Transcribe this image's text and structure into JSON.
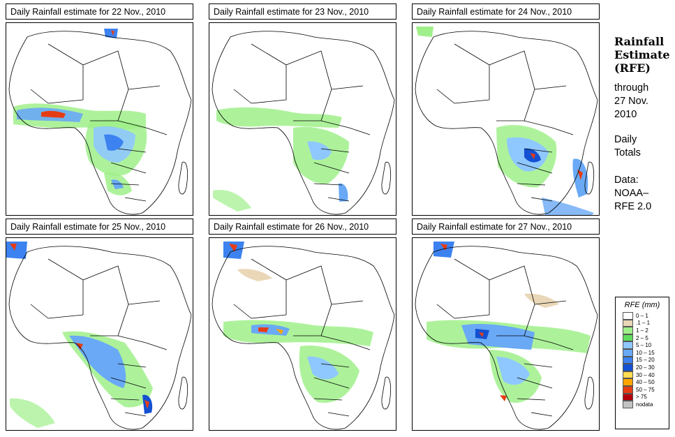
{
  "panels": [
    {
      "title": "Daily Rainfall estimate for  22 Nov., 2010",
      "date": "22 Nov., 2010"
    },
    {
      "title": "Daily Rainfall estimate for  23 Nov., 2010",
      "date": "23 Nov., 2010"
    },
    {
      "title": "Daily Rainfall estimate for  24 Nov., 2010",
      "date": "24 Nov., 2010"
    },
    {
      "title": "Daily Rainfall estimate for  25 Nov., 2010",
      "date": "25 Nov., 2010"
    },
    {
      "title": "Daily Rainfall estimate for  26 Nov., 2010",
      "date": "26 Nov., 2010"
    },
    {
      "title": "Daily Rainfall estimate for  27 Nov., 2010",
      "date": "27 Nov., 2010"
    }
  ],
  "sidebar": {
    "title_line1": "Rainfall",
    "title_line2": "Estimate",
    "title_line3": "(RFE)",
    "through_line1": "through",
    "through_line2": "27 Nov.",
    "through_line3": "2010",
    "totals_line1": "Daily",
    "totals_line2": "Totals",
    "data_line1": "Data:",
    "data_line2": "NOAA–",
    "data_line3": "RFE 2.0"
  },
  "legend": {
    "title": "RFE (mm)",
    "items": [
      {
        "label": "0 – 1",
        "color": "#ffffff"
      },
      {
        "label": ".1 – 1",
        "color": "#ead7b8"
      },
      {
        "label": "1 – 2",
        "color": "#9ff08a"
      },
      {
        "label": "2 – 5",
        "color": "#5fdc5f"
      },
      {
        "label": "5 – 10",
        "color": "#8fc8ff"
      },
      {
        "label": "10 – 15",
        "color": "#69a9f5"
      },
      {
        "label": "15 – 20",
        "color": "#3c82f0"
      },
      {
        "label": "20 – 30",
        "color": "#1450d2"
      },
      {
        "label": "30 – 40",
        "color": "#ffdc50"
      },
      {
        "label": "40 – 50",
        "color": "#ffa500"
      },
      {
        "label": "50 – 75",
        "color": "#e63c14"
      },
      {
        "label": "> 75",
        "color": "#b4000a"
      },
      {
        "label": "nodata",
        "color": "#c3c3c3"
      }
    ]
  }
}
